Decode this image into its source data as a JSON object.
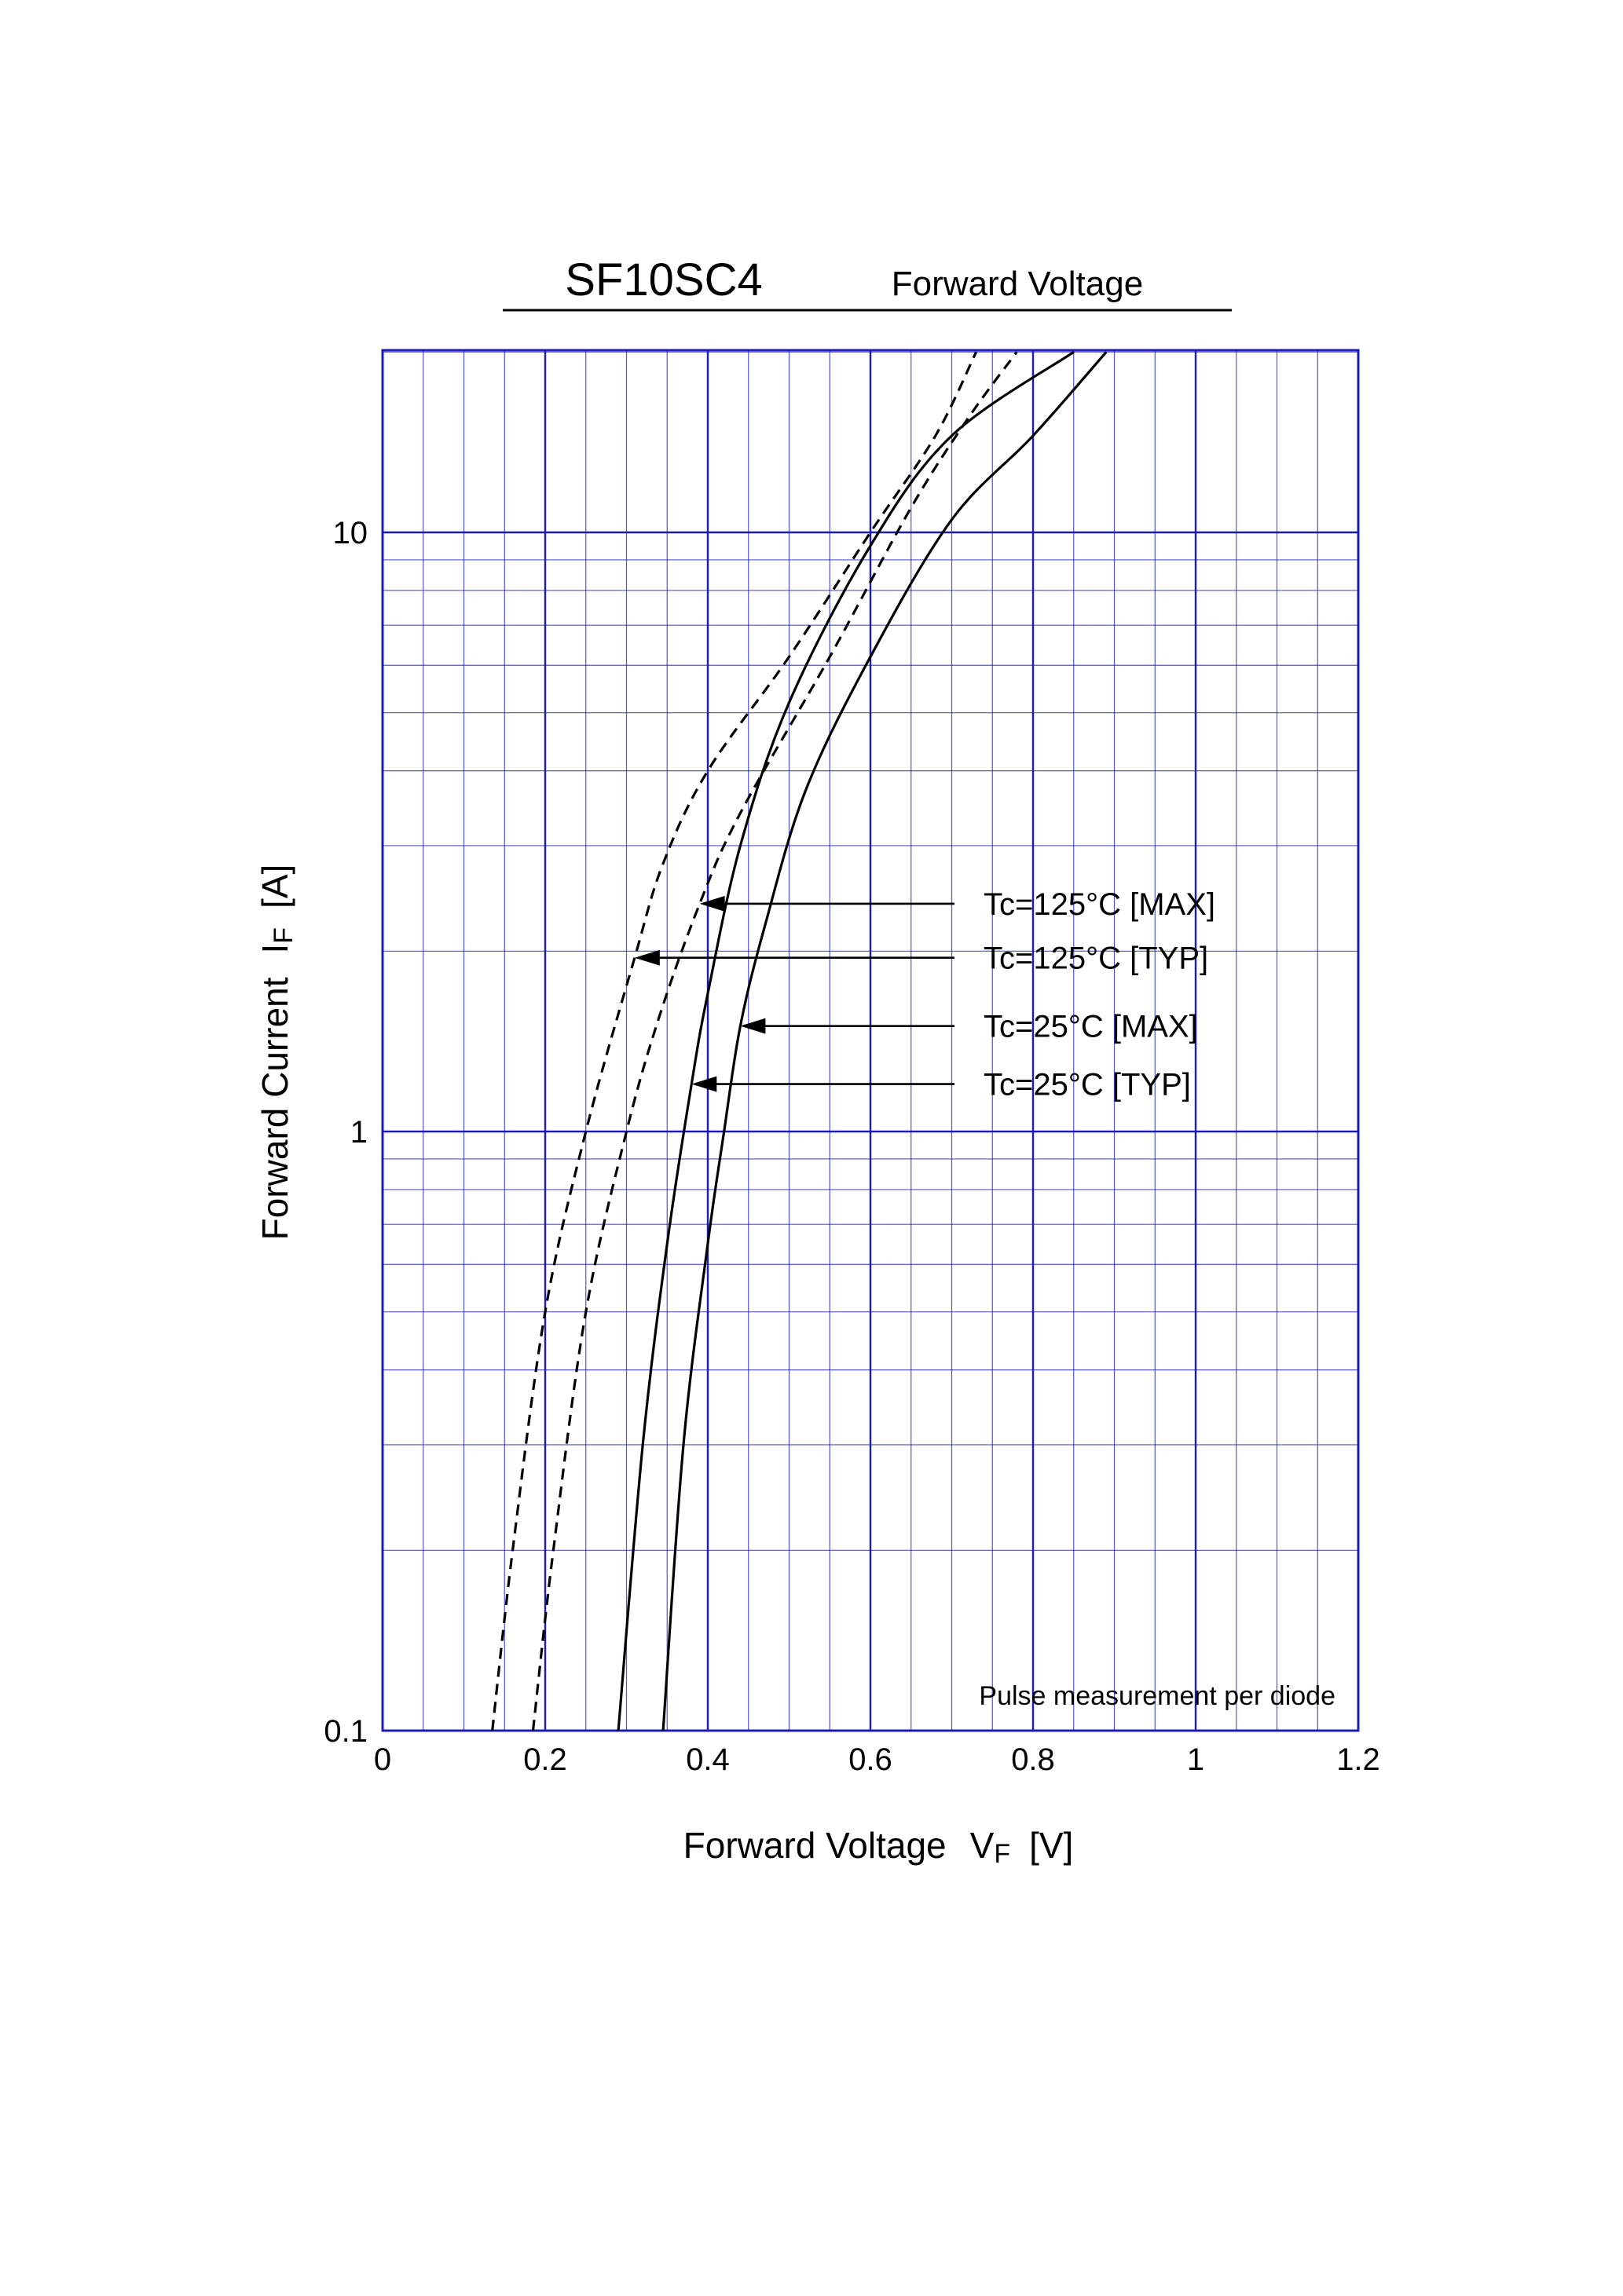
{
  "chart_data": {
    "type": "line",
    "title": "SF10SC4",
    "subtitle": "Forward Voltage",
    "xlabel": "Forward Voltage",
    "xlabel_symbol": "V",
    "xlabel_sub": "F",
    "xlabel_unit": "[V]",
    "ylabel": "Forward Current",
    "ylabel_symbol": "I",
    "ylabel_sub": "F",
    "ylabel_unit": "[A]",
    "x_scale": "linear",
    "y_scale": "log",
    "xlim": [
      0,
      1.2
    ],
    "ylim": [
      0.1,
      20
    ],
    "x_ticks": [
      0,
      0.2,
      0.4,
      0.6,
      0.8,
      1,
      1.2
    ],
    "x_tick_labels": [
      "0",
      "0.2",
      "0.4",
      "0.6",
      "0.8",
      "1",
      "1.2"
    ],
    "y_ticks": [
      0.1,
      1,
      10
    ],
    "y_tick_labels": [
      "0.1",
      "1",
      "10"
    ],
    "grid": true,
    "grid_color": "#1c1cb4",
    "note": "Pulse measurement per diode",
    "series": [
      {
        "name": "Tc=125°C [TYP]",
        "style": "dashed",
        "arrow_target": [
          0.31,
          1.95
        ],
        "points": [
          [
            0.135,
            0.1
          ],
          [
            0.16,
            0.2
          ],
          [
            0.2,
            0.5
          ],
          [
            0.25,
            1
          ],
          [
            0.31,
            1.95
          ],
          [
            0.345,
            2.8
          ],
          [
            0.4,
            4
          ],
          [
            0.5,
            6.2
          ],
          [
            0.6,
            10
          ],
          [
            0.68,
            14.5
          ],
          [
            0.73,
            20
          ]
        ]
      },
      {
        "name": "Tc=125°C [MAX]",
        "style": "dashed",
        "arrow_target": [
          0.39,
          2.4
        ],
        "points": [
          [
            0.185,
            0.1
          ],
          [
            0.21,
            0.2
          ],
          [
            0.25,
            0.5
          ],
          [
            0.3,
            1
          ],
          [
            0.34,
            1.55
          ],
          [
            0.39,
            2.4
          ],
          [
            0.44,
            3.4
          ],
          [
            0.55,
            6.2
          ],
          [
            0.65,
            11
          ],
          [
            0.72,
            15.5
          ],
          [
            0.78,
            20
          ]
        ]
      },
      {
        "name": "Tc=25°C [TYP]",
        "style": "solid",
        "arrow_target": [
          0.38,
          1.2
        ],
        "points": [
          [
            0.29,
            0.1
          ],
          [
            0.32,
            0.3
          ],
          [
            0.35,
            0.65
          ],
          [
            0.38,
            1.2
          ],
          [
            0.4,
            1.7
          ],
          [
            0.44,
            3
          ],
          [
            0.5,
            5.2
          ],
          [
            0.6,
            9.5
          ],
          [
            0.7,
            14.5
          ],
          [
            0.85,
            20
          ]
        ]
      },
      {
        "name": "Tc=25°C [MAX]",
        "style": "solid",
        "arrow_target": [
          0.44,
          1.5
        ],
        "points": [
          [
            0.345,
            0.1
          ],
          [
            0.37,
            0.3
          ],
          [
            0.4,
            0.65
          ],
          [
            0.42,
            1
          ],
          [
            0.44,
            1.5
          ],
          [
            0.47,
            2.2
          ],
          [
            0.52,
            3.7
          ],
          [
            0.6,
            6.2
          ],
          [
            0.7,
            10.5
          ],
          [
            0.8,
            14.5
          ],
          [
            0.89,
            20
          ]
        ]
      }
    ],
    "annotations": [
      {
        "text": "Tc=125°C [MAX]",
        "series": "Tc=125°C [MAX]"
      },
      {
        "text": "Tc=125°C [TYP]",
        "series": "Tc=125°C [TYP]"
      },
      {
        "text": "Tc=25°C [MAX]",
        "series": "Tc=25°C [MAX]"
      },
      {
        "text": "Tc=25°C [TYP]",
        "series": "Tc=25°C [TYP]"
      }
    ]
  }
}
